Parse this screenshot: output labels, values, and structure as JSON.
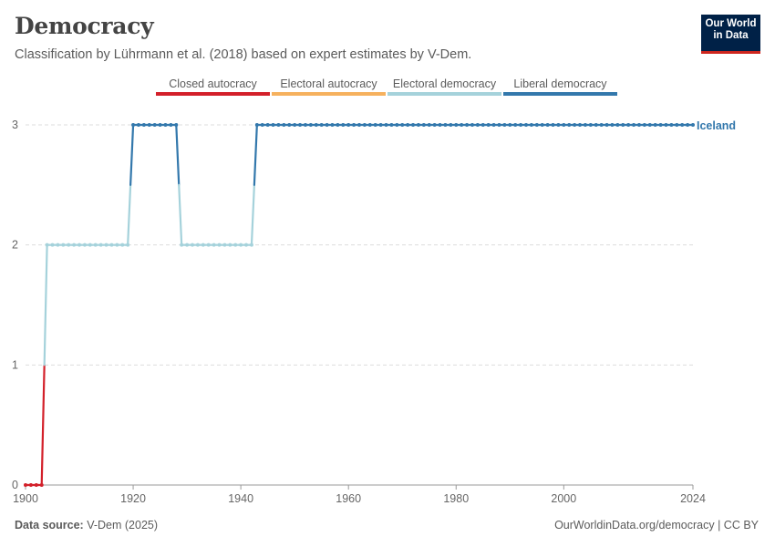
{
  "header": {
    "title": "Democracy",
    "subtitle": "Classification by Lührmann et al. (2018) based on expert estimates by V-Dem."
  },
  "logo": {
    "line1": "Our World",
    "line2": "in Data"
  },
  "footer": {
    "source_label": "Data source:",
    "source_value": "V-Dem (2025)",
    "url_license": "OurWorldinData.org/democracy | CC BY"
  },
  "chart_data": {
    "type": "line",
    "title": "Democracy",
    "xlabel": "",
    "ylabel": "",
    "xlim": [
      1900,
      2024
    ],
    "ylim": [
      0,
      3
    ],
    "x_ticks": [
      "1900",
      "1920",
      "1940",
      "1960",
      "1980",
      "2000",
      "2024"
    ],
    "x_tick_values": [
      1900,
      1920,
      1940,
      1960,
      1980,
      2000,
      2024
    ],
    "y_ticks": [
      "0",
      "1",
      "2",
      "3"
    ],
    "y_tick_values": [
      0,
      1,
      2,
      3
    ],
    "grid": "horizontal dashed",
    "legend": [
      {
        "name": "Closed autocracy",
        "color": "#d3202a"
      },
      {
        "name": "Electoral autocracy",
        "color": "#f6b15e"
      },
      {
        "name": "Electoral democracy",
        "color": "#a5d2db"
      },
      {
        "name": "Liberal democracy",
        "color": "#3378ac"
      }
    ],
    "series": [
      {
        "name": "Iceland",
        "label": "Iceland",
        "segments": [
          {
            "start": 1900,
            "end": 1903,
            "value": 0
          },
          {
            "start": 1904,
            "end": 1919,
            "value": 2
          },
          {
            "start": 1920,
            "end": 1928,
            "value": 3
          },
          {
            "start": 1929,
            "end": 1942,
            "value": 2
          },
          {
            "start": 1943,
            "end": 2024,
            "value": 3
          }
        ]
      }
    ]
  }
}
